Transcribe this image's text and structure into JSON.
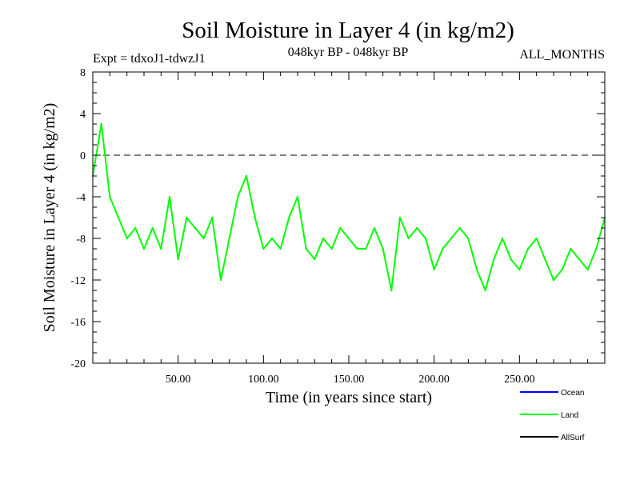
{
  "chart_data": {
    "type": "line",
    "title": "Soil Moisture in Layer 4 (in kg/m2)",
    "subtitle_left": "Expt = tdxoJ1-tdwzJ1",
    "subtitle_center": "048kyr BP - 048kyr BP",
    "subtitle_right": "ALL_MONTHS",
    "xlabel": "Time (in years since start)",
    "ylabel": "Soil Moisture in Layer 4 (in kg/m2)",
    "xlim": [
      0,
      300
    ],
    "ylim": [
      -20,
      8
    ],
    "x_ticks": [
      50,
      100,
      150,
      200,
      250
    ],
    "x_tick_labels": [
      "50.00",
      "100.00",
      "150.00",
      "200.00",
      "250.00"
    ],
    "y_ticks": [
      -20,
      -16,
      -12,
      -8,
      -4,
      0,
      4,
      8
    ],
    "y_tick_labels": [
      "-20",
      "-16",
      "-12",
      "-8",
      "-4",
      "0",
      "4",
      "8"
    ],
    "zero_line": true,
    "legend": [
      {
        "name": "Ocean",
        "color": "#0000ff"
      },
      {
        "name": "Land",
        "color": "#00ff00"
      },
      {
        "name": "AllSurf",
        "color": "#000000"
      }
    ],
    "series": [
      {
        "name": "Land",
        "color": "#00ff00",
        "x": [
          0,
          5,
          10,
          15,
          20,
          25,
          30,
          35,
          40,
          45,
          50,
          55,
          60,
          65,
          70,
          75,
          80,
          85,
          90,
          95,
          100,
          105,
          110,
          115,
          120,
          125,
          130,
          135,
          140,
          145,
          150,
          155,
          160,
          165,
          170,
          175,
          180,
          185,
          190,
          195,
          200,
          205,
          210,
          215,
          220,
          225,
          230,
          235,
          240,
          245,
          250,
          255,
          260,
          265,
          270,
          275,
          280,
          285,
          290,
          295,
          300
        ],
        "y": [
          -2,
          3,
          -4,
          -6,
          -8,
          -7,
          -9,
          -7,
          -9,
          -4,
          -10,
          -6,
          -7,
          -8,
          -6,
          -12,
          -8,
          -4,
          -2,
          -6,
          -9,
          -8,
          -9,
          -6,
          -4,
          -9,
          -10,
          -8,
          -9,
          -7,
          -8,
          -9,
          -9,
          -7,
          -9,
          -13,
          -6,
          -8,
          -7,
          -8,
          -11,
          -9,
          -8,
          -7,
          -8,
          -11,
          -13,
          -10,
          -8,
          -10,
          -11,
          -9,
          -8,
          -10,
          -12,
          -11,
          -9,
          -10,
          -11,
          -9,
          -6
        ]
      }
    ]
  }
}
